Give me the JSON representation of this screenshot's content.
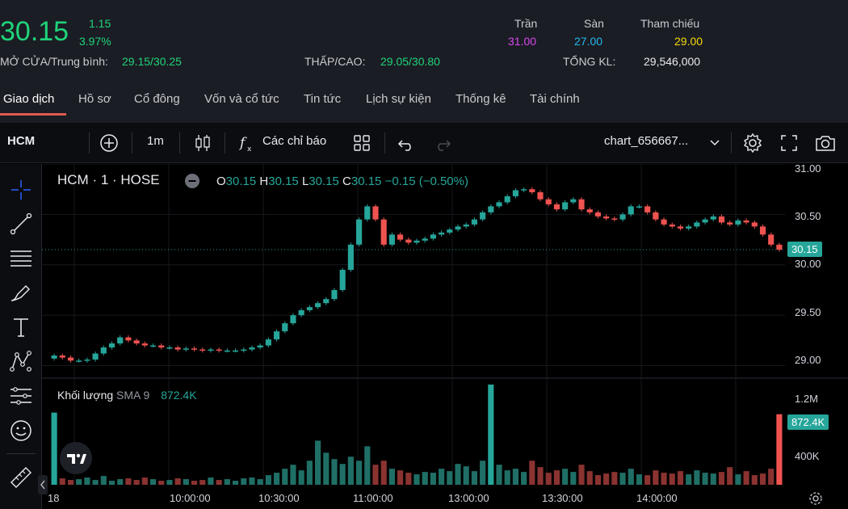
{
  "header": {
    "price": "30.15",
    "change": "1.15",
    "change_pct": "3.97%",
    "open_avg_label": "MỞ CỬA/Trung bình:",
    "open_avg_value": "29.15/30.25",
    "lowhigh_label": "THẤP/CAO:",
    "lowhigh_value": "29.05/30.80",
    "volume_label": "TỔNG KL:",
    "volume_value": "29,546,000",
    "ceiling_label": "Trần",
    "ceiling_value": "31.00",
    "floor_label": "Sàn",
    "floor_value": "27.00",
    "ref_label": "Tham chiếu",
    "ref_value": "29.00",
    "colors": {
      "up": "#1fd47a",
      "ceiling": "#d946ef",
      "floor": "#22b8f0",
      "ref": "#f5d90a"
    }
  },
  "tabs": [
    {
      "label": "Giao dịch"
    },
    {
      "label": "Hồ sơ"
    },
    {
      "label": "Cổ đông"
    },
    {
      "label": "Vốn và cổ tức"
    },
    {
      "label": "Tin tức"
    },
    {
      "label": "Lịch sự kiện"
    },
    {
      "label": "Thống kê"
    },
    {
      "label": "Tài chính"
    }
  ],
  "toolbar": {
    "symbol": "HCM",
    "interval": "1m",
    "indicators_label": "Các chỉ báo",
    "layout_name": "chart_656667..."
  },
  "legend": {
    "title": "HCM · 1 · HOSE",
    "o_label": "O",
    "o_value": "30.15",
    "h_label": "H",
    "h_value": "30.15",
    "l_label": "L",
    "l_value": "30.15",
    "c_label": "C",
    "c_value": "30.15",
    "change": "−0.15 (−0.50%)"
  },
  "volume_legend": {
    "label": "Khối lượng",
    "sma": "SMA 9",
    "value": "872.4K"
  },
  "price_axis": [
    "31.00",
    "30.50",
    "30.00",
    "29.50",
    "29.00"
  ],
  "volume_axis": [
    "1.2M",
    "400K"
  ],
  "price_badge": "30.15",
  "volume_badge": "872.4K",
  "time_axis": [
    "18",
    "10:00:00",
    "10:30:00",
    "11:00:00",
    "13:00:00",
    "13:30:00",
    "14:00:00"
  ],
  "chart_data": {
    "type": "candlestick",
    "price_range": [
      28.9,
      31.0
    ],
    "volume_range": [
      0,
      1300000
    ],
    "close_series": [
      29.1,
      29.08,
      29.05,
      29.05,
      29.06,
      29.12,
      29.18,
      29.22,
      29.28,
      29.25,
      29.22,
      29.2,
      29.2,
      29.18,
      29.18,
      29.16,
      29.17,
      29.16,
      29.15,
      29.16,
      29.15,
      29.15,
      29.15,
      29.16,
      29.18,
      29.2,
      29.26,
      29.34,
      29.42,
      29.5,
      29.55,
      29.58,
      29.62,
      29.66,
      29.75,
      29.95,
      30.2,
      30.45,
      30.58,
      30.45,
      30.2,
      30.3,
      30.25,
      30.22,
      30.24,
      30.26,
      30.3,
      30.32,
      30.35,
      30.38,
      30.4,
      30.45,
      30.52,
      30.58,
      30.62,
      30.68,
      30.74,
      30.75,
      30.72,
      30.65,
      30.6,
      30.55,
      30.62,
      30.65,
      30.55,
      30.52,
      30.48,
      30.46,
      30.45,
      30.5,
      30.58,
      30.58,
      30.52,
      30.45,
      30.4,
      30.38,
      30.36,
      30.38,
      30.42,
      30.45,
      30.48,
      30.42,
      30.4,
      30.44,
      30.42,
      30.38,
      30.3,
      30.2,
      30.15
    ],
    "volume_series": [
      900000,
      80000,
      60000,
      70000,
      90000,
      60000,
      110000,
      50000,
      70000,
      80000,
      60000,
      90000,
      70000,
      50000,
      60000,
      80000,
      70000,
      50000,
      60000,
      90000,
      60000,
      70000,
      50000,
      80000,
      90000,
      70000,
      120000,
      150000,
      200000,
      250000,
      180000,
      300000,
      550000,
      400000,
      320000,
      260000,
      350000,
      300000,
      480000,
      250000,
      300000,
      200000,
      180000,
      150000,
      130000,
      160000,
      150000,
      200000,
      170000,
      260000,
      230000,
      170000,
      300000,
      1250000,
      250000,
      180000,
      200000,
      160000,
      300000,
      220000,
      150000,
      180000,
      200000,
      160000,
      250000,
      170000,
      120000,
      140000,
      160000,
      150000,
      200000,
      130000,
      120000,
      180000,
      150000,
      140000,
      170000,
      130000,
      180000,
      150000,
      140000,
      160000,
      220000,
      130000,
      170000,
      120000,
      140000,
      200000,
      880000
    ]
  }
}
